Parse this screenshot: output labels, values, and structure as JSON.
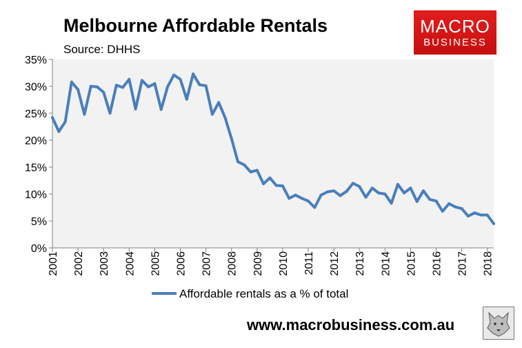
{
  "header": {
    "title": "Melbourne Affordable Rentals",
    "source": "Source: DHHS"
  },
  "logo": {
    "line1": "MACRO",
    "line2": "BUSINESS"
  },
  "footer": {
    "url": "www.macrobusiness.com.au"
  },
  "colors": {
    "line": "#4a7ebb",
    "plot_bg": "#f2f2f2",
    "logo_bg": "#d71a1a"
  },
  "chart_data": {
    "type": "line",
    "title": "Melbourne Affordable Rentals",
    "subtitle": "Source: DHHS",
    "ylim": [
      0,
      35
    ],
    "yticks": [
      0,
      5,
      10,
      15,
      20,
      25,
      30,
      35
    ],
    "ytick_labels": [
      "0%",
      "5%",
      "10%",
      "15%",
      "20%",
      "25%",
      "30%",
      "35%"
    ],
    "xlim": [
      2001,
      2018.25
    ],
    "xticks": [
      2001,
      2002,
      2003,
      2004,
      2005,
      2006,
      2007,
      2008,
      2009,
      2010,
      2011,
      2012,
      2013,
      2014,
      2015,
      2016,
      2017,
      2018
    ],
    "xtick_labels": [
      "2001",
      "2002",
      "2003",
      "2004",
      "2005",
      "2006",
      "2007",
      "2008",
      "2009",
      "2010",
      "2011",
      "2012",
      "2013",
      "2014",
      "2015",
      "2016",
      "2017",
      "2018"
    ],
    "grid": false,
    "legend_position": "bottom",
    "series": [
      {
        "name": "Affordable rentals as a % of total",
        "x": [
          2001,
          2001.25,
          2001.5,
          2001.75,
          2002,
          2002.25,
          2002.5,
          2002.75,
          2003,
          2003.25,
          2003.5,
          2003.75,
          2004,
          2004.25,
          2004.5,
          2004.75,
          2005,
          2005.25,
          2005.5,
          2005.75,
          2006,
          2006.25,
          2006.5,
          2006.75,
          2007,
          2007.25,
          2007.5,
          2007.75,
          2008,
          2008.25,
          2008.5,
          2008.75,
          2009,
          2009.25,
          2009.5,
          2009.75,
          2010,
          2010.25,
          2010.5,
          2010.75,
          2011,
          2011.25,
          2011.5,
          2011.75,
          2012,
          2012.25,
          2012.5,
          2012.75,
          2013,
          2013.25,
          2013.5,
          2013.75,
          2014,
          2014.25,
          2014.5,
          2014.75,
          2015,
          2015.25,
          2015.5,
          2015.75,
          2016,
          2016.25,
          2016.5,
          2016.75,
          2017,
          2017.25,
          2017.5,
          2017.75,
          2018,
          2018.25
        ],
        "values": [
          24.2,
          21.6,
          23.4,
          30.8,
          29.4,
          24.8,
          30.0,
          29.9,
          28.9,
          25.0,
          30.2,
          29.8,
          31.3,
          25.8,
          31.1,
          29.9,
          30.5,
          25.7,
          29.9,
          32.1,
          31.3,
          27.6,
          32.3,
          30.3,
          30.1,
          24.8,
          27.0,
          24.2,
          20.3,
          16.0,
          15.4,
          14.1,
          14.4,
          11.9,
          13.0,
          11.6,
          11.5,
          9.2,
          9.8,
          9.2,
          8.7,
          7.5,
          9.8,
          10.4,
          10.6,
          9.7,
          10.5,
          12.0,
          11.4,
          9.4,
          11.1,
          10.2,
          10.0,
          8.3,
          11.8,
          10.2,
          11.1,
          8.6,
          10.6,
          9.0,
          8.7,
          6.8,
          8.2,
          7.6,
          7.3,
          5.9,
          6.5,
          6.1,
          6.1,
          4.5
        ]
      }
    ]
  }
}
